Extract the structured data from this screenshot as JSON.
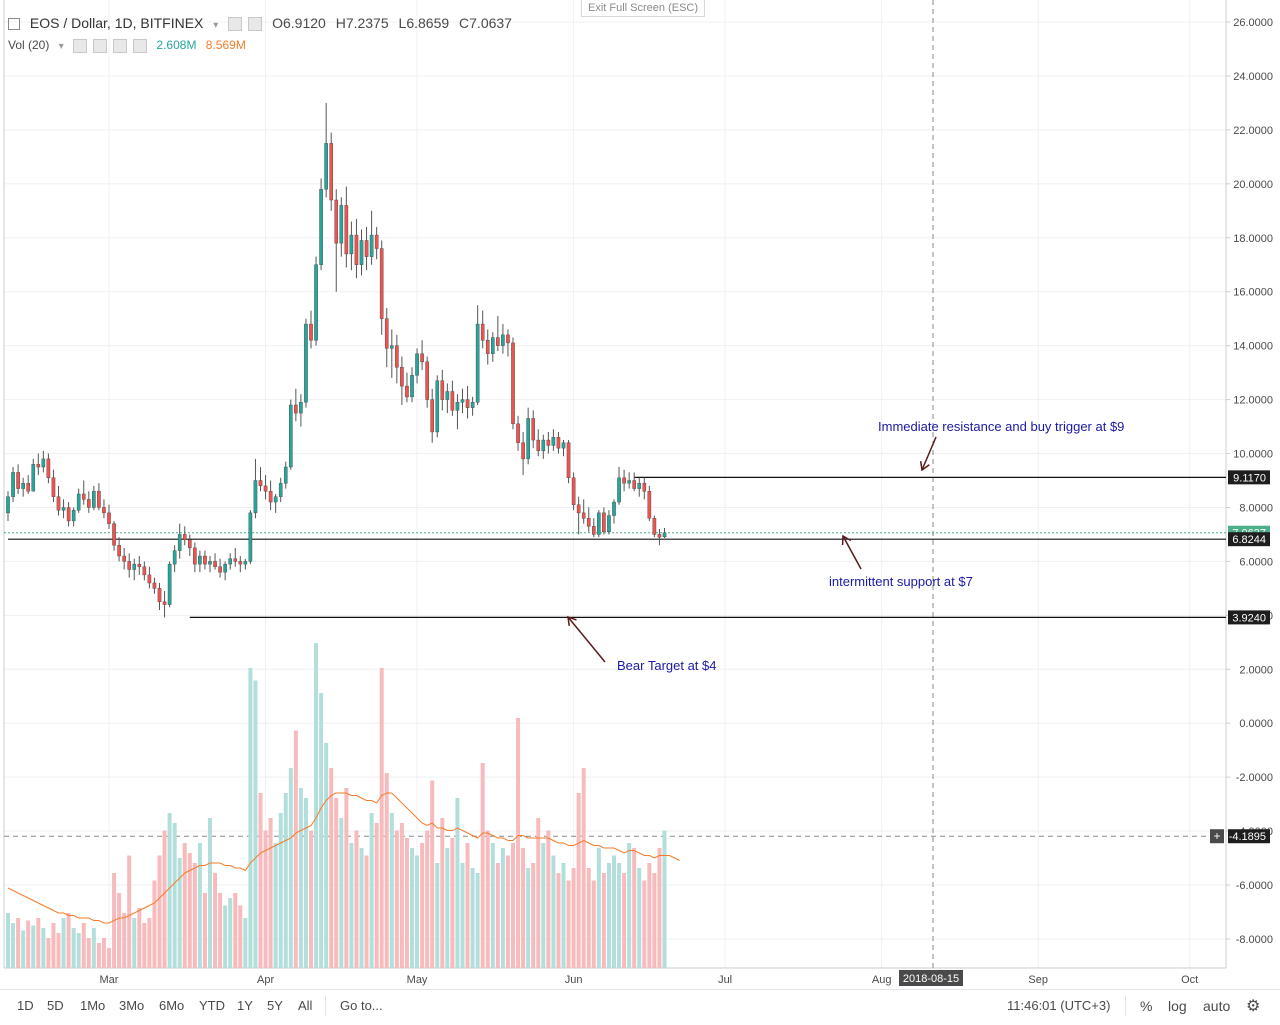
{
  "header": {
    "symbol": "EOS / Dollar, 1D, BITFINEX",
    "open": "O6.9120",
    "high": "H7.2375",
    "low": "L6.8659",
    "close": "C7.0637",
    "vol_label": "Vol (20)",
    "vol_value_1": "2.608M",
    "vol_value_2": "8.569M"
  },
  "exit_fullscreen": "Exit Full Screen (ESC)",
  "colors": {
    "up": "#26a69a",
    "down": "#ef5350",
    "vol_up": "#b2dfdb",
    "vol_down": "#f8bbbd",
    "ma": "#f57c2a",
    "annotation_text": "#1a1aa6",
    "arrow": "#5b1a1a",
    "last_price": "#4caf89"
  },
  "chart_data": {
    "type": "candlestick",
    "price_axis": {
      "min": -9,
      "max": 26,
      "ticks": [
        "26.0000",
        "24.0000",
        "22.0000",
        "20.0000",
        "18.0000",
        "16.0000",
        "14.0000",
        "12.0000",
        "10.0000",
        "8.0000",
        "6.0000",
        "4.0000",
        "2.0000",
        "0.0000",
        "-2.0000",
        "-4.0000",
        "-6.0000",
        "-8.0000"
      ]
    },
    "x_labels": [
      "Mar",
      "Apr",
      "May",
      "Jun",
      "Jul",
      "Aug",
      "Sep",
      "Oct"
    ],
    "x_date_marker": "2018-08-15",
    "price_labels": [
      {
        "value": 9.117,
        "text": "9.1170",
        "style": "dark"
      },
      {
        "value": 7.0637,
        "text": "7.0637",
        "style": "green"
      },
      {
        "value": 6.8244,
        "text": "6.8244",
        "style": "dark"
      },
      {
        "value": 3.924,
        "text": "3.9240",
        "style": "dark"
      },
      {
        "value": -4.1895,
        "text": "-4.1895",
        "style": "dark"
      }
    ],
    "horizontal_lines": [
      {
        "value": 9.117,
        "from_day": 124
      },
      {
        "value": 6.8244,
        "from_day": 0
      },
      {
        "value": 3.924,
        "from_day": 36
      }
    ],
    "annotations": [
      {
        "text": "Immediate resistance and buy trigger at $9",
        "value": 10.0,
        "day_anchor": 175
      },
      {
        "text": "intermittent support at $7",
        "value": 4.3,
        "day_anchor": 166
      },
      {
        "text": "Bear Target at $4",
        "value": 1.9,
        "day_anchor": 123
      }
    ],
    "candles": [
      [
        7.8,
        8.6,
        7.5,
        8.4
      ],
      [
        8.4,
        9.5,
        8.2,
        9.3
      ],
      [
        9.3,
        9.6,
        8.5,
        8.7
      ],
      [
        8.7,
        9.1,
        8.4,
        8.9
      ],
      [
        8.9,
        9.2,
        8.5,
        8.6
      ],
      [
        8.6,
        9.8,
        8.6,
        9.6
      ],
      [
        9.6,
        10.0,
        9.2,
        9.5
      ],
      [
        9.5,
        10.1,
        9.3,
        9.8
      ],
      [
        9.8,
        10.0,
        8.9,
        9.1
      ],
      [
        9.1,
        9.4,
        8.2,
        8.4
      ],
      [
        8.4,
        8.8,
        7.7,
        7.9
      ],
      [
        7.9,
        8.3,
        7.6,
        8.0
      ],
      [
        8.0,
        8.2,
        7.3,
        7.5
      ],
      [
        7.5,
        8.0,
        7.3,
        7.9
      ],
      [
        7.9,
        8.7,
        7.8,
        8.5
      ],
      [
        8.5,
        9.0,
        8.1,
        8.3
      ],
      [
        8.3,
        8.6,
        7.8,
        8.0
      ],
      [
        8.0,
        8.8,
        7.9,
        8.6
      ],
      [
        8.6,
        8.9,
        7.9,
        8.0
      ],
      [
        8.0,
        8.3,
        7.6,
        7.8
      ],
      [
        7.8,
        8.1,
        7.2,
        7.4
      ],
      [
        7.4,
        7.5,
        6.4,
        6.6
      ],
      [
        6.6,
        6.9,
        6.0,
        6.2
      ],
      [
        6.2,
        6.5,
        5.7,
        6.0
      ],
      [
        6.0,
        6.3,
        5.4,
        5.7
      ],
      [
        5.7,
        6.1,
        5.3,
        5.9
      ],
      [
        5.9,
        6.2,
        5.5,
        5.8
      ],
      [
        5.8,
        6.0,
        5.3,
        5.5
      ],
      [
        5.5,
        5.8,
        5.0,
        5.2
      ],
      [
        5.2,
        5.4,
        4.8,
        5.0
      ],
      [
        5.0,
        5.2,
        4.2,
        4.5
      ],
      [
        4.5,
        4.9,
        3.924,
        4.4
      ],
      [
        4.4,
        6.0,
        4.3,
        5.9
      ],
      [
        5.9,
        6.6,
        5.6,
        6.4
      ],
      [
        6.4,
        7.4,
        6.1,
        7.0
      ],
      [
        7.0,
        7.3,
        6.6,
        6.8
      ],
      [
        6.8,
        7.0,
        6.2,
        6.5
      ],
      [
        6.5,
        6.7,
        5.6,
        5.9
      ],
      [
        5.9,
        6.4,
        5.6,
        6.2
      ],
      [
        6.2,
        6.4,
        5.7,
        5.9
      ],
      [
        5.9,
        6.2,
        5.6,
        6.0
      ],
      [
        6.0,
        6.3,
        5.7,
        5.8
      ],
      [
        5.8,
        6.1,
        5.4,
        5.6
      ],
      [
        5.6,
        6.0,
        5.3,
        5.9
      ],
      [
        5.9,
        6.3,
        5.7,
        6.1
      ],
      [
        6.1,
        6.5,
        5.8,
        6.0
      ],
      [
        6.0,
        6.2,
        5.6,
        5.9
      ],
      [
        5.9,
        6.1,
        5.7,
        6.0
      ],
      [
        6.0,
        7.9,
        5.9,
        7.8
      ],
      [
        7.8,
        9.8,
        7.6,
        9.0
      ],
      [
        9.0,
        9.5,
        8.6,
        8.8
      ],
      [
        8.8,
        9.2,
        8.3,
        8.6
      ],
      [
        8.6,
        9.0,
        7.9,
        8.2
      ],
      [
        8.2,
        8.5,
        7.8,
        8.4
      ],
      [
        8.4,
        9.1,
        8.2,
        8.9
      ],
      [
        8.9,
        9.7,
        8.7,
        9.5
      ],
      [
        9.5,
        12.0,
        9.4,
        11.8
      ],
      [
        11.8,
        12.4,
        11.2,
        11.5
      ],
      [
        11.5,
        12.2,
        11.0,
        11.9
      ],
      [
        11.9,
        15.0,
        11.7,
        14.8
      ],
      [
        14.8,
        15.3,
        13.9,
        14.2
      ],
      [
        14.2,
        17.3,
        14.0,
        17.0
      ],
      [
        17.0,
        20.2,
        16.8,
        19.8
      ],
      [
        19.8,
        23.0,
        19.5,
        21.5
      ],
      [
        21.5,
        21.9,
        19.0,
        19.4
      ],
      [
        19.4,
        19.8,
        16.0,
        17.8
      ],
      [
        17.8,
        19.5,
        17.3,
        19.2
      ],
      [
        19.2,
        19.9,
        16.9,
        17.4
      ],
      [
        17.4,
        18.6,
        16.8,
        18.1
      ],
      [
        18.1,
        18.7,
        16.5,
        17.0
      ],
      [
        17.0,
        18.3,
        16.6,
        17.9
      ],
      [
        17.9,
        18.4,
        16.8,
        17.3
      ],
      [
        17.3,
        19.0,
        17.0,
        18.1
      ],
      [
        18.1,
        18.4,
        17.2,
        17.6
      ],
      [
        17.6,
        17.9,
        14.4,
        15.0
      ],
      [
        15.0,
        15.4,
        13.2,
        13.9
      ],
      [
        13.9,
        14.6,
        12.8,
        14.0
      ],
      [
        14.0,
        14.4,
        12.6,
        13.2
      ],
      [
        13.2,
        13.6,
        11.8,
        12.5
      ],
      [
        12.5,
        13.0,
        11.9,
        12.1
      ],
      [
        12.1,
        13.2,
        11.9,
        12.9
      ],
      [
        12.9,
        13.9,
        12.6,
        13.7
      ],
      [
        13.7,
        14.2,
        13.1,
        13.4
      ],
      [
        13.4,
        13.6,
        11.7,
        12.0
      ],
      [
        12.0,
        12.4,
        10.4,
        10.8
      ],
      [
        10.8,
        12.9,
        10.6,
        12.7
      ],
      [
        12.7,
        13.1,
        11.6,
        12.0
      ],
      [
        12.0,
        12.6,
        11.5,
        12.3
      ],
      [
        12.3,
        12.7,
        11.4,
        11.6
      ],
      [
        11.6,
        12.2,
        10.9,
        11.9
      ],
      [
        11.9,
        12.4,
        11.5,
        12.0
      ],
      [
        12.0,
        12.5,
        11.3,
        11.7
      ],
      [
        11.7,
        12.1,
        11.4,
        11.9
      ],
      [
        11.9,
        15.5,
        11.8,
        14.8
      ],
      [
        14.8,
        15.3,
        13.9,
        14.2
      ],
      [
        14.2,
        14.6,
        13.3,
        13.7
      ],
      [
        13.7,
        14.5,
        13.4,
        14.3
      ],
      [
        14.3,
        15.1,
        13.8,
        14.0
      ],
      [
        14.0,
        14.8,
        13.7,
        14.4
      ],
      [
        14.4,
        14.6,
        13.6,
        14.1
      ],
      [
        14.1,
        14.3,
        10.9,
        11.1
      ],
      [
        11.1,
        11.4,
        10.1,
        10.4
      ],
      [
        10.4,
        10.8,
        9.2,
        9.8
      ],
      [
        9.8,
        11.7,
        9.6,
        11.3
      ],
      [
        11.3,
        11.6,
        10.2,
        10.5
      ],
      [
        10.5,
        10.9,
        9.9,
        10.1
      ],
      [
        10.1,
        10.7,
        9.8,
        10.5
      ],
      [
        10.5,
        10.8,
        10.0,
        10.3
      ],
      [
        10.3,
        10.9,
        10.1,
        10.6
      ],
      [
        10.6,
        10.8,
        10.0,
        10.2
      ],
      [
        10.2,
        10.5,
        9.9,
        10.4
      ],
      [
        10.4,
        10.5,
        8.9,
        9.1
      ],
      [
        9.1,
        9.3,
        7.9,
        8.1
      ],
      [
        8.1,
        8.4,
        7.0,
        7.8
      ],
      [
        7.8,
        8.3,
        7.4,
        7.6
      ],
      [
        7.6,
        8.0,
        7.1,
        7.3
      ],
      [
        7.3,
        7.6,
        6.9,
        7.0
      ],
      [
        7.0,
        7.9,
        6.9,
        7.8
      ],
      [
        7.8,
        8.0,
        7.0,
        7.1
      ],
      [
        7.1,
        7.9,
        7.0,
        7.7
      ],
      [
        7.7,
        8.3,
        7.4,
        8.2
      ],
      [
        8.2,
        9.5,
        8.1,
        9.1
      ],
      [
        9.1,
        9.4,
        8.6,
        8.9
      ],
      [
        8.9,
        9.3,
        8.7,
        9.0
      ],
      [
        9.0,
        9.3,
        8.6,
        8.7
      ],
      [
        8.7,
        9.1,
        8.4,
        8.9
      ],
      [
        8.9,
        9.1,
        8.3,
        8.6
      ],
      [
        8.6,
        8.8,
        7.5,
        7.6
      ],
      [
        7.6,
        7.7,
        6.9,
        7.0
      ],
      [
        7.0,
        7.2,
        6.6,
        6.9
      ],
      [
        6.91,
        7.24,
        6.87,
        7.06
      ]
    ],
    "volume_rel": [
      0.22,
      0.18,
      0.2,
      0.15,
      0.19,
      0.17,
      0.2,
      0.16,
      0.12,
      0.18,
      0.14,
      0.2,
      0.22,
      0.16,
      0.14,
      0.18,
      0.12,
      0.16,
      0.1,
      0.12,
      0.08,
      0.38,
      0.3,
      0.22,
      0.45,
      0.2,
      0.24,
      0.18,
      0.2,
      0.35,
      0.45,
      0.55,
      0.62,
      0.58,
      0.44,
      0.5,
      0.46,
      0.42,
      0.5,
      0.3,
      0.6,
      0.38,
      0.3,
      0.25,
      0.28,
      0.3,
      0.25,
      0.2,
      1.2,
      1.15,
      0.7,
      0.55,
      0.6,
      0.5,
      0.62,
      0.7,
      0.8,
      0.95,
      0.72,
      0.68,
      0.55,
      1.3,
      1.1,
      0.9,
      0.8,
      0.68,
      0.6,
      0.72,
      0.5,
      0.55,
      0.48,
      0.45,
      0.62,
      0.58,
      1.2,
      0.78,
      0.62,
      0.55,
      0.58,
      0.52,
      0.48,
      0.45,
      0.5,
      0.55,
      0.75,
      0.42,
      0.6,
      0.48,
      0.52,
      0.68,
      0.42,
      0.5,
      0.4,
      0.38,
      0.82,
      0.55,
      0.5,
      0.42,
      0.48,
      0.45,
      0.5,
      1.0,
      0.48,
      0.4,
      0.42,
      0.6,
      0.5,
      0.55,
      0.45,
      0.38,
      0.42,
      0.35,
      0.4,
      0.7,
      0.8,
      0.4,
      0.35,
      0.48,
      0.38,
      0.42,
      0.45,
      0.42,
      0.38,
      0.5,
      0.48,
      0.4,
      0.35,
      0.42,
      0.38,
      0.48,
      0.55,
      0.48,
      0.22,
      0.14
    ],
    "volume_ma": [
      0.32,
      0.31,
      0.3,
      0.29,
      0.28,
      0.27,
      0.26,
      0.25,
      0.24,
      0.23,
      0.22,
      0.22,
      0.21,
      0.21,
      0.2,
      0.2,
      0.2,
      0.19,
      0.19,
      0.18,
      0.18,
      0.19,
      0.2,
      0.2,
      0.21,
      0.22,
      0.23,
      0.24,
      0.25,
      0.26,
      0.28,
      0.3,
      0.32,
      0.34,
      0.36,
      0.38,
      0.39,
      0.4,
      0.41,
      0.41,
      0.42,
      0.42,
      0.42,
      0.41,
      0.41,
      0.4,
      0.4,
      0.39,
      0.42,
      0.44,
      0.46,
      0.47,
      0.48,
      0.49,
      0.5,
      0.51,
      0.52,
      0.54,
      0.55,
      0.56,
      0.57,
      0.6,
      0.64,
      0.67,
      0.69,
      0.7,
      0.7,
      0.7,
      0.69,
      0.69,
      0.68,
      0.67,
      0.67,
      0.66,
      0.69,
      0.7,
      0.7,
      0.68,
      0.66,
      0.64,
      0.62,
      0.6,
      0.58,
      0.57,
      0.58,
      0.56,
      0.56,
      0.55,
      0.55,
      0.56,
      0.55,
      0.54,
      0.53,
      0.52,
      0.54,
      0.54,
      0.53,
      0.52,
      0.52,
      0.51,
      0.51,
      0.53,
      0.53,
      0.52,
      0.52,
      0.52,
      0.52,
      0.52,
      0.51,
      0.5,
      0.5,
      0.49,
      0.49,
      0.5,
      0.51,
      0.5,
      0.49,
      0.49,
      0.48,
      0.48,
      0.48,
      0.47,
      0.46,
      0.47,
      0.47,
      0.46,
      0.45,
      0.45,
      0.44,
      0.45,
      0.45,
      0.45,
      0.44,
      0.43
    ]
  },
  "toolbar": {
    "ranges": [
      "1D",
      "5D",
      "1Mo",
      "3Mo",
      "6Mo",
      "YTD",
      "1Y",
      "5Y",
      "All"
    ],
    "goto": "Go to...",
    "time": "11:46:01 (UTC+3)",
    "percent": "%",
    "log": "log",
    "auto": "auto"
  }
}
